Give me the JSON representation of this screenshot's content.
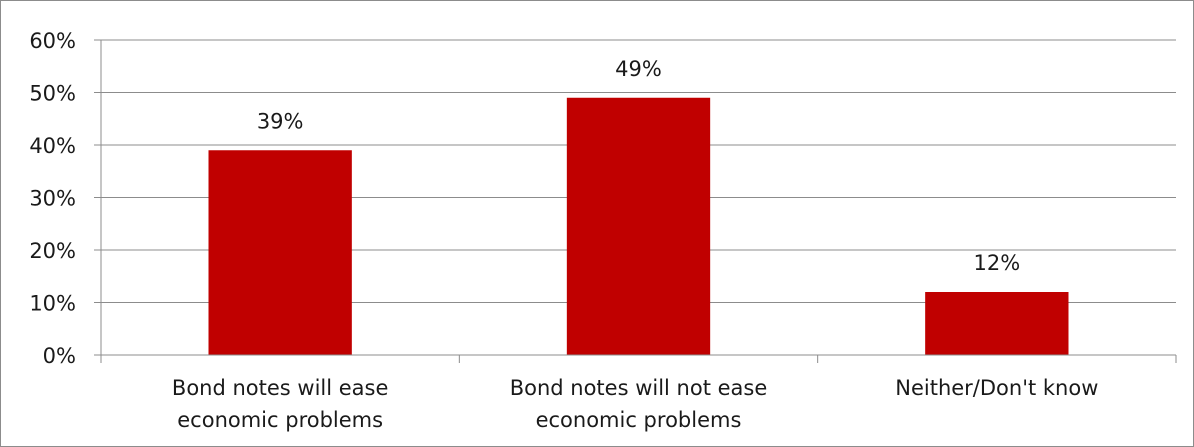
{
  "chart_data": {
    "type": "bar",
    "categories": [
      [
        "Bond notes will ease",
        "economic problems"
      ],
      [
        "Bond notes will not ease",
        "economic problems"
      ],
      [
        "Neither/Don't know"
      ]
    ],
    "values": [
      39,
      49,
      12
    ],
    "data_labels": [
      "39%",
      "49%",
      "12%"
    ],
    "ylim": [
      0,
      60
    ],
    "yticks": [
      0,
      10,
      20,
      30,
      40,
      50,
      60
    ],
    "ytick_labels": [
      "0%",
      "10%",
      "20%",
      "30%",
      "40%",
      "50%",
      "60%"
    ],
    "grid": true,
    "legend": "none",
    "bar_color": "#c00000",
    "gridline_color": "#8c8c8c"
  }
}
